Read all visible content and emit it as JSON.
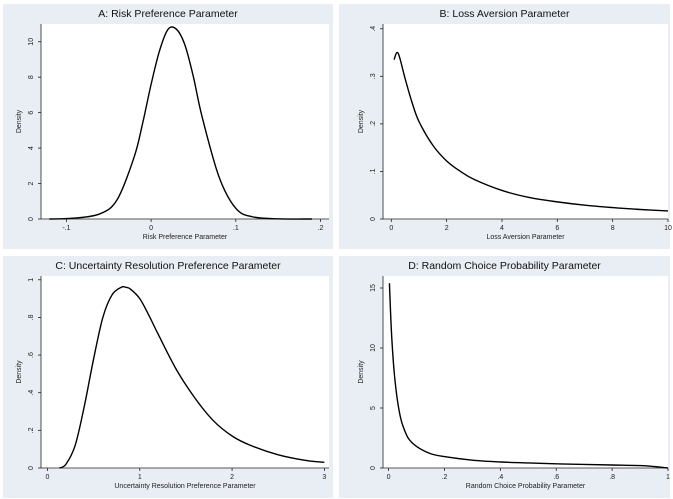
{
  "chart_data": [
    {
      "type": "line",
      "title": "A: Risk Preference Parameter",
      "xlabel": "Risk Preference Parameter",
      "ylabel": "Density",
      "xlim": [
        -0.13,
        0.21
      ],
      "ylim": [
        0,
        11
      ],
      "xticks": [
        -0.1,
        0,
        0.1,
        0.2
      ],
      "xtick_labels": [
        "-.1",
        "0",
        ".1",
        ".2"
      ],
      "yticks": [
        0,
        2,
        4,
        6,
        8,
        10
      ],
      "ytick_labels": [
        "0",
        "2",
        "4",
        "6",
        "8",
        "10"
      ],
      "grid": true,
      "series": [
        {
          "x": [
            -0.12,
            -0.09,
            -0.06,
            -0.04,
            -0.02,
            -0.01,
            0.0,
            0.01,
            0.02,
            0.03,
            0.04,
            0.05,
            0.06,
            0.08,
            0.1,
            0.12,
            0.15,
            0.19
          ],
          "y": [
            0.0,
            0.05,
            0.3,
            1.1,
            3.5,
            5.4,
            7.6,
            9.5,
            10.7,
            10.7,
            9.8,
            8.0,
            5.8,
            2.4,
            0.6,
            0.12,
            0.01,
            0.0
          ]
        }
      ]
    },
    {
      "type": "line",
      "title": "B: Loss Aversion Parameter",
      "xlabel": "Loss Aversion Parameter",
      "ylabel": "Density",
      "xlim": [
        -0.3,
        10
      ],
      "ylim": [
        0,
        0.41
      ],
      "xticks": [
        0,
        2,
        4,
        6,
        8,
        10
      ],
      "xtick_labels": [
        "0",
        "2",
        "4",
        "6",
        "8",
        "10"
      ],
      "yticks": [
        0,
        0.1,
        0.2,
        0.3,
        0.4
      ],
      "ytick_labels": [
        "0",
        ".1",
        ".2",
        ".3",
        ".4"
      ],
      "grid": true,
      "series": [
        {
          "x": [
            0.1,
            0.2,
            0.3,
            0.5,
            0.75,
            1,
            1.5,
            2,
            2.5,
            3,
            4,
            5,
            6,
            7,
            8,
            9,
            10
          ],
          "y": [
            0.335,
            0.35,
            0.34,
            0.295,
            0.245,
            0.205,
            0.155,
            0.122,
            0.1,
            0.083,
            0.06,
            0.045,
            0.036,
            0.029,
            0.024,
            0.02,
            0.017
          ]
        }
      ]
    },
    {
      "type": "line",
      "title": "C: Uncertainty Resolution Preference Parameter",
      "xlabel": "Uncertainty Resolution Preference Parameter",
      "ylabel": "Density",
      "xlim": [
        -0.07,
        3.05
      ],
      "ylim": [
        0,
        1.02
      ],
      "xticks": [
        0,
        1,
        2,
        3
      ],
      "xtick_labels": [
        "0",
        "1",
        "2",
        "3"
      ],
      "yticks": [
        0,
        0.2,
        0.4,
        0.6,
        0.8,
        1
      ],
      "ytick_labels": [
        "0",
        ".2",
        ".4",
        ".6",
        ".8",
        "1"
      ],
      "grid": true,
      "series": [
        {
          "x": [
            0.13,
            0.2,
            0.3,
            0.4,
            0.5,
            0.6,
            0.7,
            0.8,
            0.85,
            0.9,
            1.0,
            1.1,
            1.2,
            1.4,
            1.6,
            1.8,
            2.0,
            2.2,
            2.5,
            2.8,
            3.0
          ],
          "y": [
            0.0,
            0.02,
            0.12,
            0.33,
            0.58,
            0.8,
            0.92,
            0.96,
            0.96,
            0.95,
            0.9,
            0.81,
            0.71,
            0.52,
            0.37,
            0.25,
            0.17,
            0.12,
            0.07,
            0.04,
            0.03
          ]
        }
      ]
    },
    {
      "type": "line",
      "title": "D: Random Choice Probability Parameter",
      "xlabel": "Random Choice Probability Parameter",
      "ylabel": "Density",
      "xlim": [
        -0.02,
        1.0
      ],
      "ylim": [
        0,
        16
      ],
      "xticks": [
        0,
        0.2,
        0.4,
        0.6,
        0.8,
        1
      ],
      "xtick_labels": [
        "0",
        ".2",
        ".4",
        ".6",
        ".8",
        "1"
      ],
      "yticks": [
        0,
        5,
        10,
        15
      ],
      "ytick_labels": [
        "0",
        "5",
        "10",
        "15"
      ],
      "grid": true,
      "series": [
        {
          "x": [
            0.003,
            0.007,
            0.012,
            0.02,
            0.03,
            0.04,
            0.05,
            0.07,
            0.1,
            0.15,
            0.2,
            0.3,
            0.4,
            0.5,
            0.6,
            0.7,
            0.8,
            0.9,
            0.95,
            1.0
          ],
          "y": [
            15.4,
            13.0,
            10.6,
            8.0,
            5.9,
            4.5,
            3.6,
            2.5,
            1.8,
            1.2,
            0.95,
            0.65,
            0.5,
            0.42,
            0.35,
            0.3,
            0.25,
            0.2,
            0.12,
            0.0
          ]
        }
      ]
    }
  ]
}
